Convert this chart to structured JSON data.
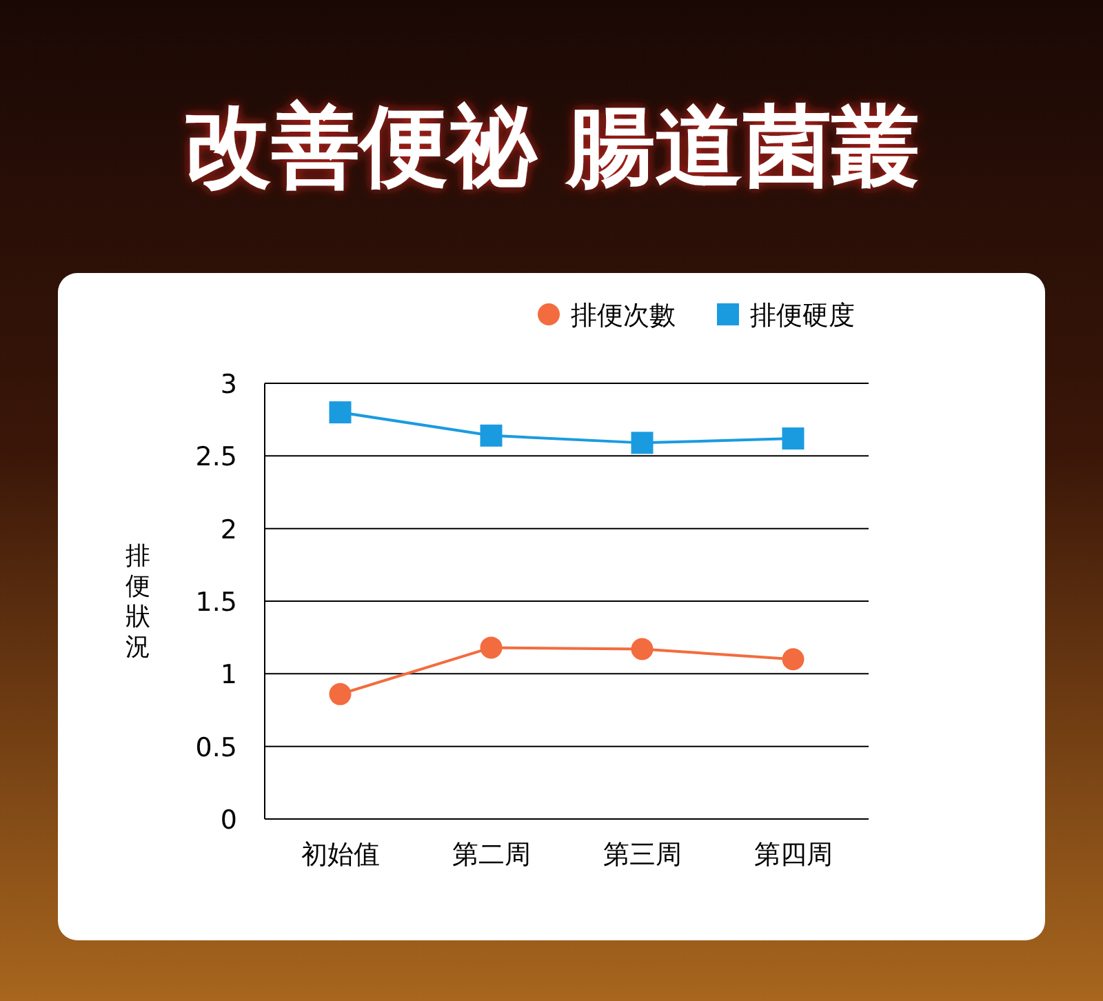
{
  "chart_data": {
    "type": "line",
    "title": "改善便祕 腸道菌叢",
    "ylabel": "排便狀況",
    "categories": [
      "初始值",
      "第二周",
      "第三周",
      "第四周"
    ],
    "series": [
      {
        "name": "排便次數",
        "color": "#f26c3f",
        "marker": "circle",
        "values": [
          0.86,
          1.18,
          1.17,
          1.1
        ]
      },
      {
        "name": "排便硬度",
        "color": "#1a9be0",
        "marker": "square",
        "values": [
          2.8,
          2.64,
          2.59,
          2.62
        ]
      }
    ],
    "ylim": [
      0,
      3
    ],
    "yticks": [
      0,
      0.5,
      1,
      1.5,
      2,
      2.5,
      3
    ],
    "grid": "y",
    "legend": "top right"
  }
}
